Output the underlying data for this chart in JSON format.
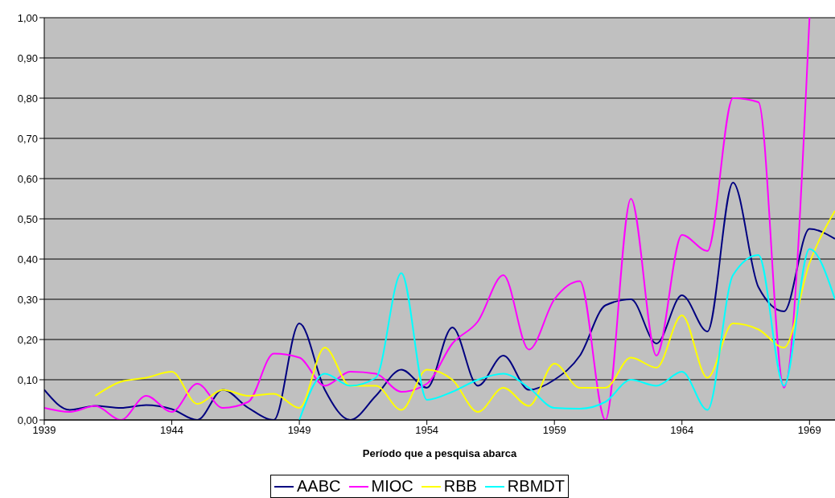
{
  "chart_data": {
    "type": "line",
    "xlabel": "Período que a pesquisa abarca",
    "x": [
      1939,
      1940,
      1941,
      1942,
      1943,
      1944,
      1945,
      1946,
      1947,
      1948,
      1949,
      1950,
      1951,
      1952,
      1953,
      1954,
      1955,
      1956,
      1957,
      1958,
      1959,
      1960,
      1961,
      1962,
      1963,
      1964,
      1965,
      1966,
      1967,
      1968,
      1969,
      1970
    ],
    "series": [
      {
        "name": "AABC",
        "color": "#000080",
        "values": [
          0.075,
          0.025,
          0.035,
          0.03,
          0.037,
          0.027,
          0.0,
          0.075,
          0.03,
          0.0,
          0.24,
          0.075,
          0.0,
          0.06,
          0.125,
          0.08,
          0.23,
          0.085,
          0.16,
          0.075,
          0.1,
          0.16,
          0.285,
          0.3,
          0.19,
          0.31,
          0.22,
          0.59,
          0.33,
          0.27,
          0.475,
          0.45
        ]
      },
      {
        "name": "MIOC",
        "color": "#ff00ff",
        "values": [
          0.03,
          0.02,
          0.035,
          0.0,
          0.06,
          0.02,
          0.09,
          0.03,
          0.045,
          0.165,
          0.155,
          0.085,
          0.12,
          0.115,
          0.07,
          0.09,
          0.19,
          0.245,
          0.36,
          0.175,
          0.3,
          0.345,
          0.0,
          0.55,
          0.16,
          0.46,
          0.42,
          0.8,
          0.79,
          0.08,
          1.0,
          null
        ]
      },
      {
        "name": "RBB",
        "color": "#ffff00",
        "values": [
          null,
          null,
          0.06,
          0.095,
          0.105,
          0.12,
          0.04,
          0.075,
          0.06,
          0.065,
          0.03,
          0.18,
          0.085,
          0.085,
          0.025,
          0.125,
          0.1,
          0.02,
          0.08,
          0.035,
          0.14,
          0.08,
          0.08,
          0.155,
          0.13,
          0.26,
          0.105,
          0.24,
          0.225,
          0.18,
          0.39,
          0.52
        ]
      },
      {
        "name": "RBMDT",
        "color": "#00ffff",
        "values": [
          null,
          null,
          null,
          null,
          null,
          null,
          null,
          null,
          null,
          null,
          0.0,
          0.115,
          0.085,
          0.105,
          0.365,
          0.05,
          0.07,
          0.1,
          0.115,
          0.08,
          0.03,
          0.028,
          0.045,
          0.1,
          0.085,
          0.12,
          0.025,
          0.36,
          0.41,
          0.085,
          0.425,
          0.3
        ]
      }
    ],
    "xlim": [
      1939,
      1970
    ],
    "xticks": [
      1939,
      1944,
      1949,
      1954,
      1959,
      1964,
      1969
    ],
    "ylim": [
      0,
      1
    ],
    "yticks": [
      {
        "value": 0,
        "label": "0,00"
      },
      {
        "value": 0.1,
        "label": "0,10"
      },
      {
        "value": 0.2,
        "label": "0,20"
      },
      {
        "value": 0.3,
        "label": "0,30"
      },
      {
        "value": 0.4,
        "label": "0,40"
      },
      {
        "value": 0.5,
        "label": "0,50"
      },
      {
        "value": 0.6,
        "label": "0,60"
      },
      {
        "value": 0.7,
        "label": "0,70"
      },
      {
        "value": 0.8,
        "label": "0,80"
      },
      {
        "value": 0.9,
        "label": "0,90"
      },
      {
        "value": 1,
        "label": "1,00"
      }
    ],
    "grid": "y",
    "legend": "bottom",
    "marker": "none",
    "line_style": "solid"
  }
}
